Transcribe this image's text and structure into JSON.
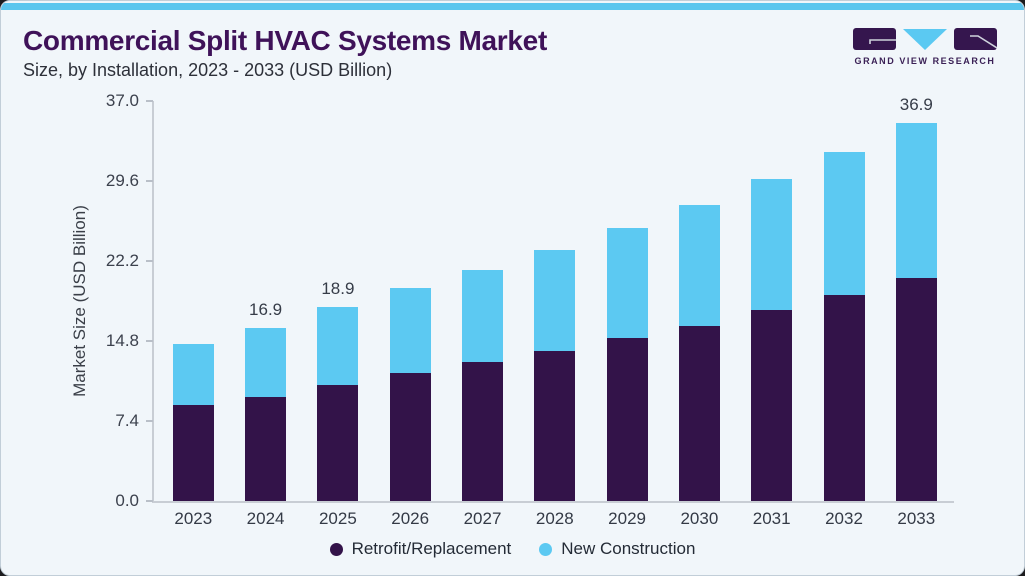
{
  "page": {
    "background_color": "#f1f6fa",
    "accent_strip_color": "#5bc6ee"
  },
  "header": {
    "title": "Commercial Split HVAC Systems Market",
    "subtitle": "Size, by Installation, 2023 - 2033 (USD Billion)",
    "title_color": "#3f1259"
  },
  "logo": {
    "text": "GRAND VIEW RESEARCH",
    "purple": "#35164e",
    "blue": "#5bc9f2"
  },
  "chart_data": {
    "type": "bar",
    "stacked": true,
    "title": "Commercial Split HVAC Systems Market Size, by Installation, 2023 - 2033 (USD Billion)",
    "categories": [
      "2023",
      "2024",
      "2025",
      "2026",
      "2027",
      "2028",
      "2029",
      "2030",
      "2031",
      "2032",
      "2033"
    ],
    "series": [
      {
        "name": "Retrofit/Replacement",
        "color": "#331349",
        "values": [
          9.4,
          10.2,
          11.3,
          12.5,
          13.6,
          14.6,
          15.9,
          17.1,
          18.7,
          20.1,
          21.8
        ]
      },
      {
        "name": "New Construction",
        "color": "#5cc9f2",
        "values": [
          6.0,
          6.7,
          7.6,
          8.3,
          9.0,
          9.9,
          10.7,
          11.8,
          12.8,
          14.0,
          15.1
        ]
      }
    ],
    "totals": [
      15.4,
      16.9,
      18.9,
      20.8,
      22.6,
      24.5,
      26.6,
      28.9,
      31.5,
      34.1,
      36.9
    ],
    "bar_labels": [
      "",
      "16.9",
      "18.9",
      "",
      "",
      "",
      "",
      "",
      "",
      "",
      "36.9"
    ],
    "xlabel": "",
    "ylabel": "Market Size (USD Billion)",
    "yticks": [
      "37.0",
      "29.6",
      "22.2",
      "14.8",
      "7.4",
      "0.0"
    ],
    "ylim": [
      0,
      37
    ],
    "grid": false,
    "legend_position": "bottom"
  }
}
